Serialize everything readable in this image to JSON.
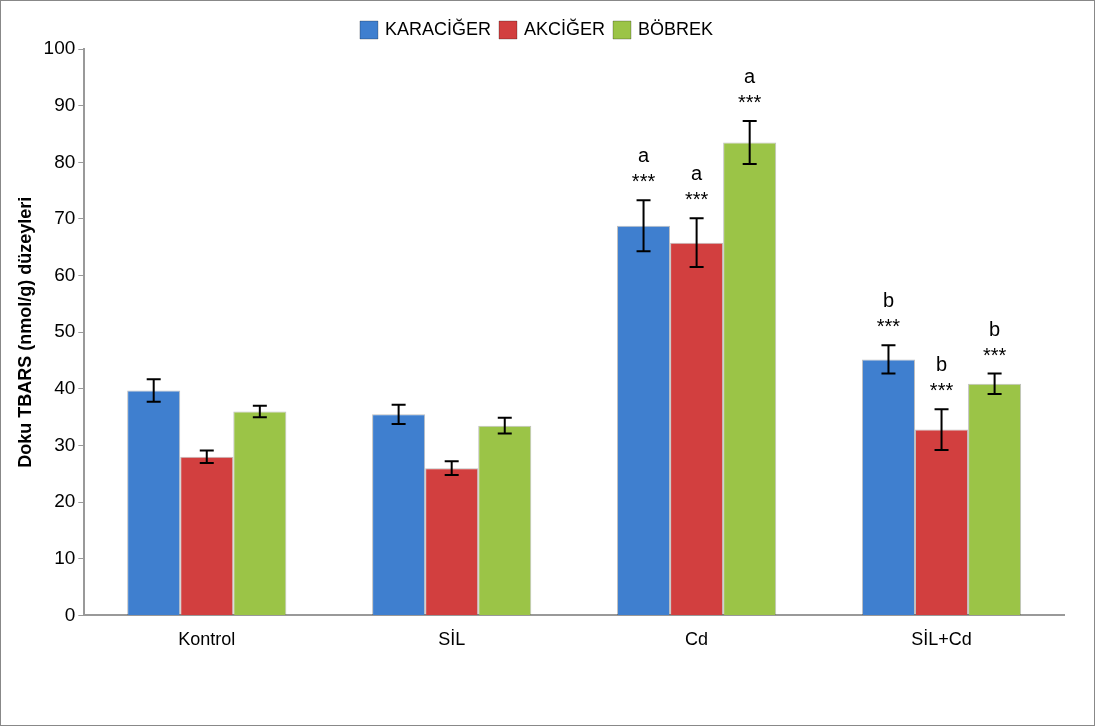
{
  "chart_data": {
    "type": "bar",
    "ylabel": "Doku TBARS (nmol/g) düzeyleri",
    "categories": [
      "Kontrol",
      "SİL",
      "Cd",
      "SİL+Cd"
    ],
    "series": [
      {
        "name": "KARACİĞER",
        "color": "#3f7fcf",
        "values": [
          39.7,
          35.5,
          68.8,
          45.2
        ],
        "errors": [
          2.0,
          1.7,
          4.5,
          2.5
        ],
        "value_labels": [
          null,
          null,
          "a\n***",
          "b\n***"
        ]
      },
      {
        "name": "AKCİĞER",
        "color": "#d23f3f",
        "values": [
          28,
          26,
          65.8,
          32.8
        ],
        "errors": [
          1.1,
          1.2,
          4.3,
          3.6
        ],
        "value_labels": [
          null,
          null,
          "a\n***",
          "b\n***"
        ]
      },
      {
        "name": "BÖBREK",
        "color": "#9bc447",
        "values": [
          36,
          33.5,
          83.5,
          40.9
        ],
        "errors": [
          1.0,
          1.4,
          3.8,
          1.8
        ],
        "value_labels": [
          null,
          null,
          "a\n***",
          "b\n***"
        ]
      }
    ],
    "ylim": [
      0,
      100
    ],
    "yticks": [
      0,
      10,
      20,
      30,
      40,
      50,
      60,
      70,
      80,
      90,
      100
    ],
    "legend": "top",
    "grid": false
  }
}
